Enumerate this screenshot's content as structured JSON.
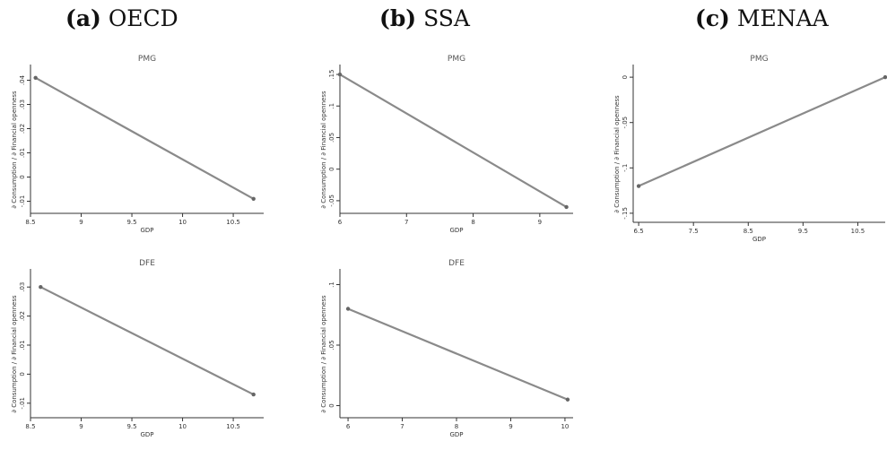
{
  "columns": [
    {
      "label": "(a)",
      "name": "OECD"
    },
    {
      "label": "(b)",
      "name": "SSA"
    },
    {
      "label": "(c)",
      "name": "MENAA"
    }
  ],
  "colors": {
    "line": "#8a8a8a",
    "axis": "#333333",
    "text": "#333333"
  },
  "chart_data": [
    {
      "id": "oecd-pmg",
      "type": "line",
      "title": "PMG",
      "xlabel": "GDP",
      "ylabel": "∂ Consumption / ∂ Financial openness",
      "xlim": [
        8.5,
        10.8
      ],
      "ylim": [
        -0.015,
        0.045
      ],
      "xticks": [
        8.5,
        9,
        9.5,
        10,
        10.5
      ],
      "xtick_labels": [
        "8.5",
        "9",
        "9.5",
        "10",
        "10.5"
      ],
      "yticks": [
        -0.01,
        0,
        0.01,
        0.02,
        0.03,
        0.04
      ],
      "ytick_labels": [
        "-.01",
        "0",
        ".01",
        ".02",
        ".03",
        ".04"
      ],
      "x": [
        8.55,
        10.7
      ],
      "y": [
        0.041,
        -0.009
      ]
    },
    {
      "id": "oecd-dfe",
      "type": "line",
      "title": "DFE",
      "xlabel": "GDP",
      "ylabel": "∂ Consumption / ∂ Financial openness",
      "xlim": [
        8.5,
        10.8
      ],
      "ylim": [
        -0.015,
        0.035
      ],
      "xticks": [
        8.5,
        9,
        9.5,
        10,
        10.5
      ],
      "xtick_labels": [
        "8.5",
        "9",
        "9.5",
        "10",
        "10.5"
      ],
      "yticks": [
        -0.01,
        0,
        0.01,
        0.02,
        0.03
      ],
      "ytick_labels": [
        "-.01",
        "0",
        ".01",
        ".02",
        ".03"
      ],
      "x": [
        8.6,
        10.7
      ],
      "y": [
        0.03,
        -0.007
      ]
    },
    {
      "id": "ssa-pmg",
      "type": "line",
      "title": "PMG",
      "xlabel": "GDP",
      "ylabel": "∂ Consumption / ∂ Financial openness",
      "xlim": [
        6,
        9.5
      ],
      "ylim": [
        -0.07,
        0.16
      ],
      "xticks": [
        6,
        7,
        8,
        9
      ],
      "xtick_labels": [
        "6",
        "7",
        "8",
        "9"
      ],
      "yticks": [
        -0.05,
        0,
        0.05,
        0.1,
        0.15
      ],
      "ytick_labels": [
        "-.05",
        "0",
        ".05",
        ".1",
        ".15"
      ],
      "x": [
        6,
        9.4
      ],
      "y": [
        0.15,
        -0.06
      ]
    },
    {
      "id": "ssa-dfe",
      "type": "line",
      "title": "DFE",
      "xlabel": "GDP",
      "ylabel": "∂ Consumption / ∂ Financial openness",
      "xlim": [
        5.85,
        10.15
      ],
      "ylim": [
        -0.01,
        0.11
      ],
      "xticks": [
        6,
        7,
        8,
        9,
        10
      ],
      "xtick_labels": [
        "6",
        "7",
        "8",
        "9",
        "10"
      ],
      "yticks": [
        0,
        0.05,
        0.1
      ],
      "ytick_labels": [
        "0",
        ".05",
        ".1"
      ],
      "x": [
        6,
        10.05
      ],
      "y": [
        0.08,
        0.005
      ]
    },
    {
      "id": "menaa-pmg",
      "type": "line",
      "title": "PMG",
      "xlabel": "GDP",
      "ylabel": "∂ Consumption / ∂ Financial openness",
      "xlim": [
        6.4,
        11
      ],
      "ylim": [
        -0.16,
        0.01
      ],
      "xticks": [
        6.5,
        7.5,
        8.5,
        9.5,
        10.5
      ],
      "xtick_labels": [
        "6.5",
        "7.5",
        "8.5",
        "9.5",
        "10.5"
      ],
      "yticks": [
        -0.15,
        -0.1,
        -0.05,
        0
      ],
      "ytick_labels": [
        "-.15",
        "-.1",
        "-.05",
        "0"
      ],
      "x": [
        6.5,
        11
      ],
      "y": [
        -0.12,
        0.0
      ]
    }
  ]
}
